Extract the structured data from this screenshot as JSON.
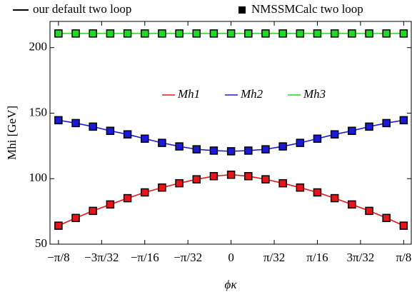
{
  "chart_data": {
    "type": "line",
    "legend_entries": [
      "our default two loop",
      "NMSSMCalc two loop"
    ],
    "x_label": "ϕκ",
    "y_label": "Mhi [GeV]",
    "x": [
      -0.3927,
      -0.3534,
      -0.3142,
      -0.2749,
      -0.2356,
      -0.1963,
      -0.1571,
      -0.1178,
      -0.0785,
      -0.0393,
      0,
      0.0393,
      0.0785,
      0.1178,
      0.1571,
      0.1963,
      0.2356,
      0.2749,
      0.3142,
      0.3534,
      0.3927
    ],
    "series": [
      {
        "name": "Mh1",
        "color": "#e8141b",
        "values": [
          64.1,
          70,
          75.4,
          80.3,
          85.1,
          89.5,
          93.2,
          96.5,
          99.5,
          101.9,
          103,
          101.9,
          99.5,
          96.5,
          93.2,
          89.5,
          85.1,
          80.3,
          75.4,
          70,
          64.1
        ]
      },
      {
        "name": "Mh2",
        "color": "#1a1ad6",
        "values": [
          144.6,
          142.4,
          139.7,
          136.5,
          133.8,
          130.5,
          127.3,
          124.6,
          122.4,
          121.4,
          120.9,
          121.4,
          122.4,
          124.6,
          127.3,
          130.5,
          133.8,
          136.5,
          139.7,
          142.4,
          144.6
        ]
      },
      {
        "name": "Mh3",
        "color": "#22d822",
        "values": [
          210.8,
          210.8,
          210.8,
          210.8,
          210.8,
          210.8,
          210.8,
          210.8,
          210.8,
          210.8,
          210.8,
          210.8,
          210.8,
          210.8,
          210.8,
          210.8,
          210.8,
          210.8,
          210.8,
          210.8,
          210.8
        ]
      }
    ],
    "xlim": [
      -0.412,
      0.41
    ],
    "ylim": [
      50,
      220
    ],
    "xticks": [
      {
        "value": -0.3927,
        "label": "−π/8"
      },
      {
        "value": -0.2945,
        "label": "−3π/32"
      },
      {
        "value": -0.1963,
        "label": "−π/16"
      },
      {
        "value": -0.0982,
        "label": "−π/32"
      },
      0,
      {
        "value": 0.0982,
        "label": "π/32"
      },
      {
        "value": 0.1963,
        "label": "π/16"
      },
      {
        "value": 0.2945,
        "label": "3π/32"
      },
      {
        "value": 0.3927,
        "label": "π/8"
      }
    ],
    "yticks": [
      50,
      100,
      150,
      200
    ]
  }
}
